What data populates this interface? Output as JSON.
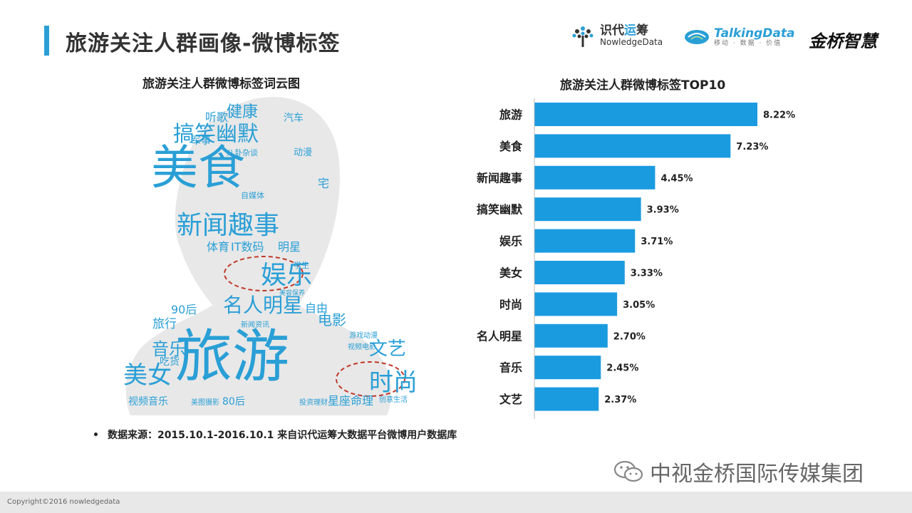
{
  "header": {
    "title": "旅游关注人群画像-微博标签",
    "logos": {
      "nd_cn_a": "识代",
      "nd_cn_b": "运",
      "nd_cn_c": "筹",
      "nd_en": "NowledgeData",
      "td_en": "TalkingData",
      "td_cn": "移动 · 数据 · 价值",
      "jq": "金桥智慧"
    }
  },
  "cloud": {
    "title": "旅游关注人群微博标签词云图",
    "color": "#2a9fd6",
    "silhouette_color": "#e8e8e8",
    "words": [
      {
        "text": "旅游",
        "highlight": false
      },
      {
        "text": "美食",
        "highlight": false
      },
      {
        "text": "新闻趣事",
        "highlight": false
      },
      {
        "text": "搞笑幽默",
        "highlight": false
      },
      {
        "text": "娱乐",
        "highlight": true
      },
      {
        "text": "名人明星",
        "highlight": false
      },
      {
        "text": "时尚",
        "highlight": true
      },
      {
        "text": "美女",
        "highlight": false
      },
      {
        "text": "文艺",
        "highlight": false
      },
      {
        "text": "音乐",
        "highlight": false
      },
      {
        "text": "健康",
        "highlight": false
      },
      {
        "text": "听歌",
        "highlight": false
      },
      {
        "text": "汽车",
        "highlight": false
      },
      {
        "text": "军事",
        "highlight": false
      },
      {
        "text": "八卦杂谈",
        "highlight": false
      },
      {
        "text": "动漫",
        "highlight": false
      },
      {
        "text": "宅",
        "highlight": false
      },
      {
        "text": "自媒体",
        "highlight": false
      },
      {
        "text": "体育",
        "highlight": false
      },
      {
        "text": "IT数码",
        "highlight": false
      },
      {
        "text": "明星",
        "highlight": false
      },
      {
        "text": "学生",
        "highlight": false
      },
      {
        "text": "美容保养",
        "highlight": false
      },
      {
        "text": "90后",
        "highlight": false
      },
      {
        "text": "自由",
        "highlight": false
      },
      {
        "text": "旅行",
        "highlight": false
      },
      {
        "text": "电影",
        "highlight": false
      },
      {
        "text": "新闻资讯",
        "highlight": false
      },
      {
        "text": "游戏动漫",
        "highlight": false
      },
      {
        "text": "视频电影",
        "highlight": false
      },
      {
        "text": "吃货",
        "highlight": false
      },
      {
        "text": "视频音乐",
        "highlight": false
      },
      {
        "text": "美图摄影",
        "highlight": false
      },
      {
        "text": "80后",
        "highlight": false
      },
      {
        "text": "投资理财",
        "highlight": false
      },
      {
        "text": "星座命理",
        "highlight": false
      },
      {
        "text": "创意生活",
        "highlight": false
      }
    ]
  },
  "chart_data": {
    "type": "bar",
    "orientation": "horizontal",
    "title": "旅游关注人群微博标签TOP10",
    "categories": [
      "旅游",
      "美食",
      "新闻趣事",
      "搞笑幽默",
      "娱乐",
      "美女",
      "时尚",
      "名人明星",
      "音乐",
      "文艺"
    ],
    "values": [
      8.22,
      7.23,
      4.45,
      3.93,
      3.71,
      3.33,
      3.05,
      2.7,
      2.45,
      2.37
    ],
    "value_labels": [
      "8.22%",
      "7.23%",
      "4.45%",
      "3.93%",
      "3.71%",
      "3.33%",
      "3.05%",
      "2.70%",
      "2.45%",
      "2.37%"
    ],
    "xlim": [
      0,
      8.22
    ],
    "bar_color": "#1a9be0",
    "grid": false,
    "legend": "none"
  },
  "source": {
    "bullet": "•",
    "text": "数据来源：2015.10.1-2016.10.1  来自识代运筹大数据平台微博用户数据库"
  },
  "watermark": {
    "text": "中视金桥国际传媒集团"
  },
  "footer": {
    "copyright": "Copyright©2016 nowledgedata"
  }
}
